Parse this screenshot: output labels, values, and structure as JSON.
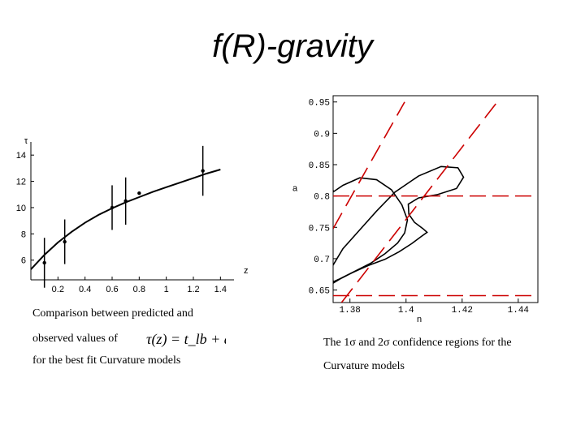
{
  "slide": {
    "title": "f(R)-gravity"
  },
  "captions": {
    "left_line1": "Comparison between predicted and",
    "left_line2": "observed values of",
    "left_line3": "for the best fit Curvature models",
    "formula": "τ(z) = t_lb + df",
    "right_line1": "The 1σ and 2σ confidence regions for the",
    "right_line2": "Curvature models"
  },
  "chart_data": [
    {
      "type": "scatter",
      "title": "",
      "xlabel": "z",
      "ylabel": "τ",
      "xlim": [
        0,
        1.5
      ],
      "ylim": [
        4.5,
        15
      ],
      "xticks": [
        0.2,
        0.4,
        0.6,
        0.8,
        1,
        1.2,
        1.4
      ],
      "xtick_labels": [
        "0.2",
        "0.4",
        "0.6",
        "0.8",
        "1",
        "1.2",
        "1.4"
      ],
      "yticks": [
        6,
        8,
        10,
        12,
        14
      ],
      "ytick_labels": [
        "6",
        "8",
        "10",
        "12",
        "14"
      ],
      "points": [
        {
          "x": 0.1,
          "y": 5.8,
          "err": 1.9
        },
        {
          "x": 0.25,
          "y": 7.4,
          "err": 1.7
        },
        {
          "x": 0.6,
          "y": 10.0,
          "err": 1.7
        },
        {
          "x": 0.7,
          "y": 10.5,
          "err": 1.8
        },
        {
          "x": 0.8,
          "y": 11.1,
          "err": 0.1
        },
        {
          "x": 1.27,
          "y": 12.8,
          "err": 1.9
        }
      ],
      "curve": {
        "x": [
          0.0,
          0.1,
          0.2,
          0.3,
          0.4,
          0.5,
          0.6,
          0.7,
          0.8,
          0.9,
          1.0,
          1.1,
          1.2,
          1.3,
          1.4
        ],
        "y": [
          5.3,
          6.4,
          7.35,
          8.15,
          8.85,
          9.45,
          9.95,
          10.4,
          10.8,
          11.2,
          11.55,
          11.9,
          12.25,
          12.6,
          12.9
        ]
      },
      "grid": false
    },
    {
      "type": "line",
      "title": "",
      "xlabel": "n",
      "ylabel": "a",
      "xlim": [
        1.374,
        1.447
      ],
      "ylim": [
        0.63,
        0.96
      ],
      "xticks": [
        1.38,
        1.4,
        1.42,
        1.44
      ],
      "xtick_labels": [
        "1.38",
        "1.4",
        "1.42",
        "1.44"
      ],
      "yticks": [
        0.65,
        0.7,
        0.75,
        0.8,
        0.85,
        0.9,
        0.95
      ],
      "ytick_labels": [
        "0.65",
        "0.7",
        "0.75",
        "0.8",
        "0.85",
        "0.9",
        "0.95"
      ],
      "series": [
        {
          "kind": "contour-outer",
          "color": "#000000",
          "dash": "solid",
          "x": [
            1.374,
            1.3735,
            1.3775,
            1.3835,
            1.3895,
            1.396,
            1.4045,
            1.4125,
            1.4185,
            1.4205,
            1.418,
            1.411,
            1.4045,
            1.4008,
            1.401,
            1.403,
            1.406,
            1.4075,
            1.4053,
            1.402,
            1.3975,
            1.3925,
            1.3865,
            1.3805,
            1.376,
            1.374
          ],
          "y": [
            0.663,
            0.686,
            0.716,
            0.746,
            0.776,
            0.806,
            0.832,
            0.847,
            0.845,
            0.83,
            0.812,
            0.802,
            0.797,
            0.787,
            0.771,
            0.758,
            0.748,
            0.742,
            0.735,
            0.724,
            0.711,
            0.699,
            0.689,
            0.677,
            0.667,
            0.663
          ]
        },
        {
          "kind": "contour-inner",
          "color": "#000000",
          "dash": "solid",
          "x": [
            1.374,
            1.3742,
            1.3775,
            1.3835,
            1.3895,
            1.3948,
            1.3985,
            1.4005,
            1.3995,
            1.397,
            1.3925,
            1.3875,
            1.3818,
            1.377,
            1.374
          ],
          "y": [
            0.809,
            0.807,
            0.817,
            0.829,
            0.826,
            0.81,
            0.786,
            0.762,
            0.741,
            0.725,
            0.708,
            0.693,
            0.68,
            0.669,
            0.661
          ]
        },
        {
          "kind": "diagonal-1",
          "color": "#cc0000",
          "dash": "dashed",
          "x": [
            1.374,
            1.3995
          ],
          "y": [
            0.748,
            0.95
          ]
        },
        {
          "kind": "diagonal-2",
          "color": "#cc0000",
          "dash": "dashed",
          "x": [
            1.377,
            1.4325
          ],
          "y": [
            0.63,
            0.95
          ]
        },
        {
          "kind": "horizontal-1",
          "color": "#cc0000",
          "dash": "dashed",
          "x": [
            1.374,
            1.447
          ],
          "y": [
            0.8,
            0.8
          ]
        },
        {
          "kind": "horizontal-2",
          "color": "#cc0000",
          "dash": "dashed",
          "x": [
            1.374,
            1.447
          ],
          "y": [
            0.641,
            0.641
          ]
        }
      ],
      "grid": false
    }
  ]
}
